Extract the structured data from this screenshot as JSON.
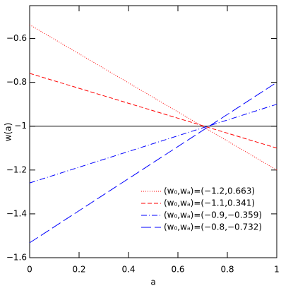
{
  "chart_data": {
    "type": "line",
    "x_label": "a",
    "y_label": "w(a)",
    "x": [
      0,
      1
    ],
    "series": [
      {
        "name": "(w₀,wₐ)=(−1.2,0.663)",
        "color": "#ff0000",
        "dash": "dotted",
        "values": [
          -0.537,
          -1.2
        ]
      },
      {
        "name": "(w₀,wₐ)=(−1.1,0.341)",
        "color": "#ff0000",
        "dash": "dashed",
        "values": [
          -0.759,
          -1.1
        ]
      },
      {
        "name": "(w₀,wₐ)=(−0.9,−0.359)",
        "color": "#0000ff",
        "dash": "dash-dot",
        "values": [
          -1.259,
          -0.9
        ]
      },
      {
        "name": "(w₀,wₐ)=(−0.8,−0.732)",
        "color": "#0000ff",
        "dash": "long-dash",
        "values": [
          -1.532,
          -0.8
        ]
      }
    ],
    "hlines": [
      {
        "value": -1,
        "color": "#000000"
      }
    ],
    "xlim": [
      0,
      1
    ],
    "xticks": [
      0,
      0.2,
      0.4,
      0.6,
      0.8,
      1
    ],
    "ylim": [
      -1.6,
      -0.45
    ],
    "yticks": [
      {
        "value": -1.6,
        "label": "−1.6"
      },
      {
        "value": -1.4,
        "label": "−1.4"
      },
      {
        "value": -1.2,
        "label": "−1.2"
      },
      {
        "value": -1,
        "label": "−1"
      },
      {
        "value": -0.8,
        "label": "−0.8"
      },
      {
        "value": -0.6,
        "label": "−0.6"
      }
    ],
    "legend": "lower right"
  }
}
